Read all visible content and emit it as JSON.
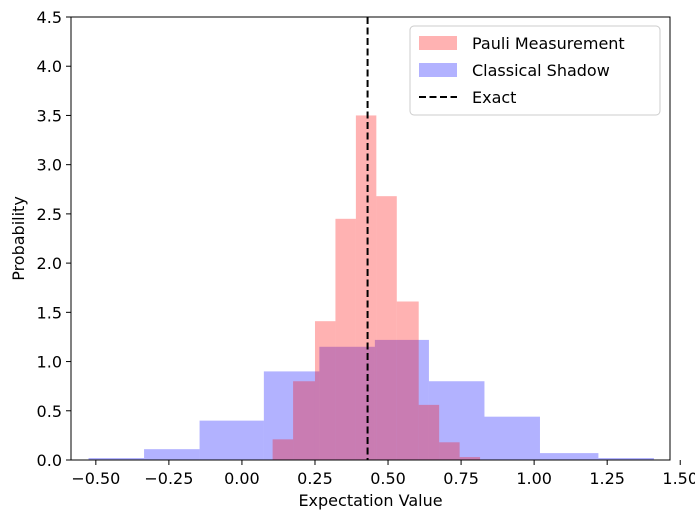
{
  "chart_data": {
    "type": "histogram",
    "title": "",
    "xlabel": "Expectation Value",
    "ylabel": "Probability",
    "xlim": [
      -0.585,
      1.465
    ],
    "ylim": [
      0,
      4.5
    ],
    "xticks": [
      -0.5,
      -0.25,
      0.0,
      0.25,
      0.5,
      0.75,
      1.0,
      1.25,
      1.5
    ],
    "xtick_labels": [
      "−0.50",
      "−0.25",
      "0.00",
      "0.25",
      "0.50",
      "0.75",
      "1.00",
      "1.25",
      "1.50"
    ],
    "yticks": [
      0.0,
      0.5,
      1.0,
      1.5,
      2.0,
      2.5,
      3.0,
      3.5,
      4.0,
      4.5
    ],
    "ytick_labels": [
      "0.0",
      "0.5",
      "1.0",
      "1.5",
      "2.0",
      "2.5",
      "3.0",
      "3.5",
      "4.0",
      "4.5"
    ],
    "legend_position": "top-right",
    "grid": false,
    "series": [
      {
        "name": "Classical Shadow",
        "color": "#0000ff",
        "opacity": 0.3,
        "bins": [
          {
            "x0": -0.525,
            "x1": -0.335,
            "y": 0.02
          },
          {
            "x0": -0.335,
            "x1": -0.145,
            "y": 0.11
          },
          {
            "x0": -0.145,
            "x1": 0.075,
            "y": 0.4
          },
          {
            "x0": 0.075,
            "x1": 0.265,
            "y": 0.9
          },
          {
            "x0": 0.265,
            "x1": 0.455,
            "y": 1.15
          },
          {
            "x0": 0.455,
            "x1": 0.64,
            "y": 1.22
          },
          {
            "x0": 0.64,
            "x1": 0.83,
            "y": 0.8
          },
          {
            "x0": 0.83,
            "x1": 1.02,
            "y": 0.44
          },
          {
            "x0": 1.02,
            "x1": 1.22,
            "y": 0.07
          },
          {
            "x0": 1.22,
            "x1": 1.41,
            "y": 0.02
          }
        ]
      },
      {
        "name": "Pauli Measurement",
        "color": "#ff0000",
        "opacity": 0.3,
        "bins": [
          {
            "x0": 0.105,
            "x1": 0.175,
            "y": 0.21
          },
          {
            "x0": 0.175,
            "x1": 0.25,
            "y": 0.8
          },
          {
            "x0": 0.25,
            "x1": 0.32,
            "y": 1.41
          },
          {
            "x0": 0.32,
            "x1": 0.39,
            "y": 2.45
          },
          {
            "x0": 0.39,
            "x1": 0.46,
            "y": 3.5
          },
          {
            "x0": 0.46,
            "x1": 0.53,
            "y": 2.68
          },
          {
            "x0": 0.53,
            "x1": 0.605,
            "y": 1.61
          },
          {
            "x0": 0.605,
            "x1": 0.675,
            "y": 0.56
          },
          {
            "x0": 0.675,
            "x1": 0.745,
            "y": 0.18
          },
          {
            "x0": 0.745,
            "x1": 0.815,
            "y": 0.03
          }
        ]
      }
    ],
    "exact_line": {
      "name": "Exact",
      "x": 0.43,
      "color": "#000000",
      "style": "dashed"
    },
    "legend": [
      {
        "label": "Pauli Measurement",
        "kind": "patch",
        "color": "#ff0000",
        "opacity": 0.3
      },
      {
        "label": "Classical Shadow",
        "kind": "patch",
        "color": "#0000ff",
        "opacity": 0.3
      },
      {
        "label": "Exact",
        "kind": "line",
        "color": "#000000",
        "style": "dashed"
      }
    ]
  }
}
